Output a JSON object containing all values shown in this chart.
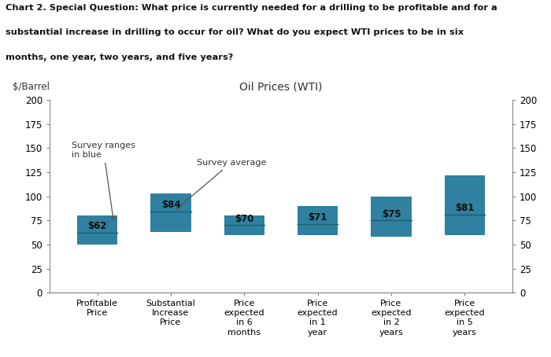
{
  "title_chart": "Oil Prices (WTI)",
  "ylabel_left": "$/Barrel",
  "suptitle_line1": "Chart 2. Special Question: What price is currently needed for a drilling to be profitable and for a",
  "suptitle_line2": "substantial increase in drilling to occur for oil? What do you expect WTI prices to be in six",
  "suptitle_line3": "months, one year, two years, and five years?",
  "categories": [
    "Profitable\nPrice",
    "Substantial\nIncrease\nPrice",
    "Price\nexpected\nin 6\nmonths",
    "Price\nexpected\nin 1\nyear",
    "Price\nexpected\nin 2\nyears",
    "Price\nexpected\nin 5\nyears"
  ],
  "bar_bottoms": [
    50,
    63,
    60,
    60,
    58,
    60
  ],
  "bar_tops": [
    80,
    103,
    80,
    90,
    100,
    122
  ],
  "averages": [
    62,
    84,
    70,
    71,
    75,
    81
  ],
  "bar_color": "#3080a0",
  "avg_line_color": "#1a5f6e",
  "text_color": "#333333",
  "background_color": "#ffffff",
  "ylim": [
    0,
    200
  ],
  "yticks": [
    0,
    25,
    50,
    75,
    100,
    125,
    150,
    175,
    200
  ],
  "annotation1_text": "Survey ranges\nin blue",
  "annotation2_text": "Survey average",
  "bar_width": 0.55
}
